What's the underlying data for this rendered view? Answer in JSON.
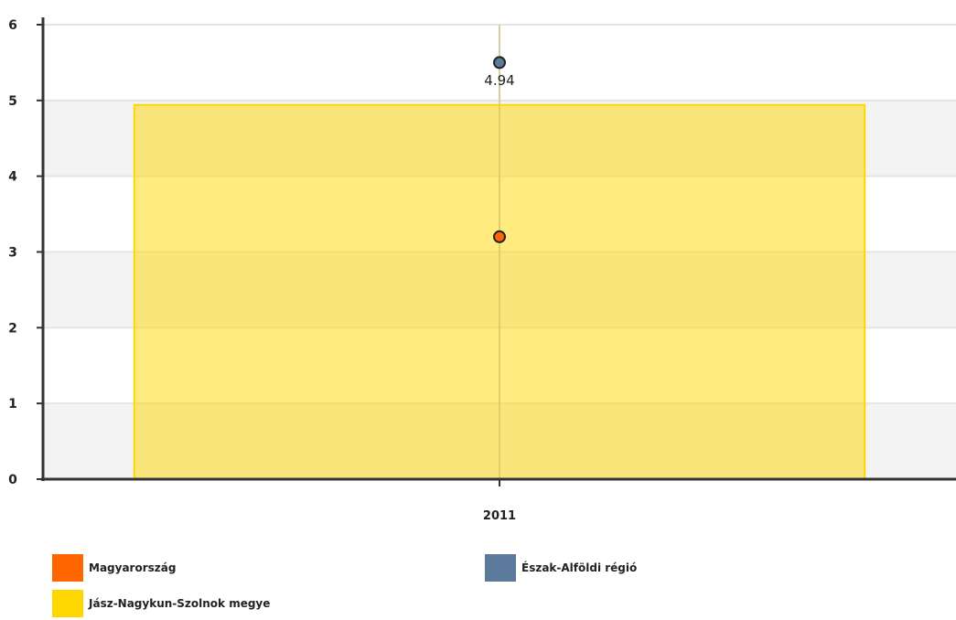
{
  "chart_data": {
    "type": "bar",
    "categories": [
      "2011"
    ],
    "series": [
      {
        "name": "Magyarország",
        "kind": "point",
        "color": "#ff6600",
        "values": [
          3.2
        ]
      },
      {
        "name": "Észak-Alföldi régió",
        "kind": "point",
        "color": "#5c7a9c",
        "values": [
          5.5
        ]
      },
      {
        "name": "Jász-Nagykun-Szolnok megye",
        "kind": "bar",
        "color": "#ffd700",
        "values": [
          4.94
        ]
      }
    ],
    "data_labels": [
      {
        "series": "Jász-Nagykun-Szolnok megye",
        "category": "2011",
        "text": "4.94"
      }
    ],
    "yticks": [
      "0",
      "1",
      "2",
      "3",
      "4",
      "5",
      "6"
    ],
    "ylim": [
      0,
      6
    ],
    "grid": "alternating bands",
    "legend_position": "bottom",
    "title": "",
    "xlabel": "",
    "ylabel": ""
  },
  "legend": {
    "items": [
      {
        "label": "Magyarország",
        "color": "#ff6600"
      },
      {
        "label": "Észak-Alföldi régió",
        "color": "#5c7a9c"
      },
      {
        "label": "Jász-Nagykun-Szolnok megye",
        "color": "#ffd700"
      }
    ]
  }
}
